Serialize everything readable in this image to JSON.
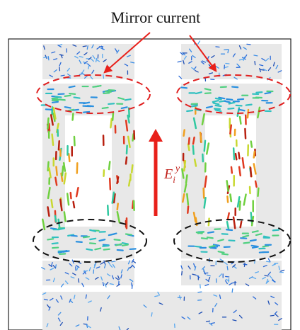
{
  "annotation": {
    "title": "Mirror current"
  },
  "field_label": {
    "symbol": "E",
    "subscript": "i",
    "superscript": "y"
  }
}
